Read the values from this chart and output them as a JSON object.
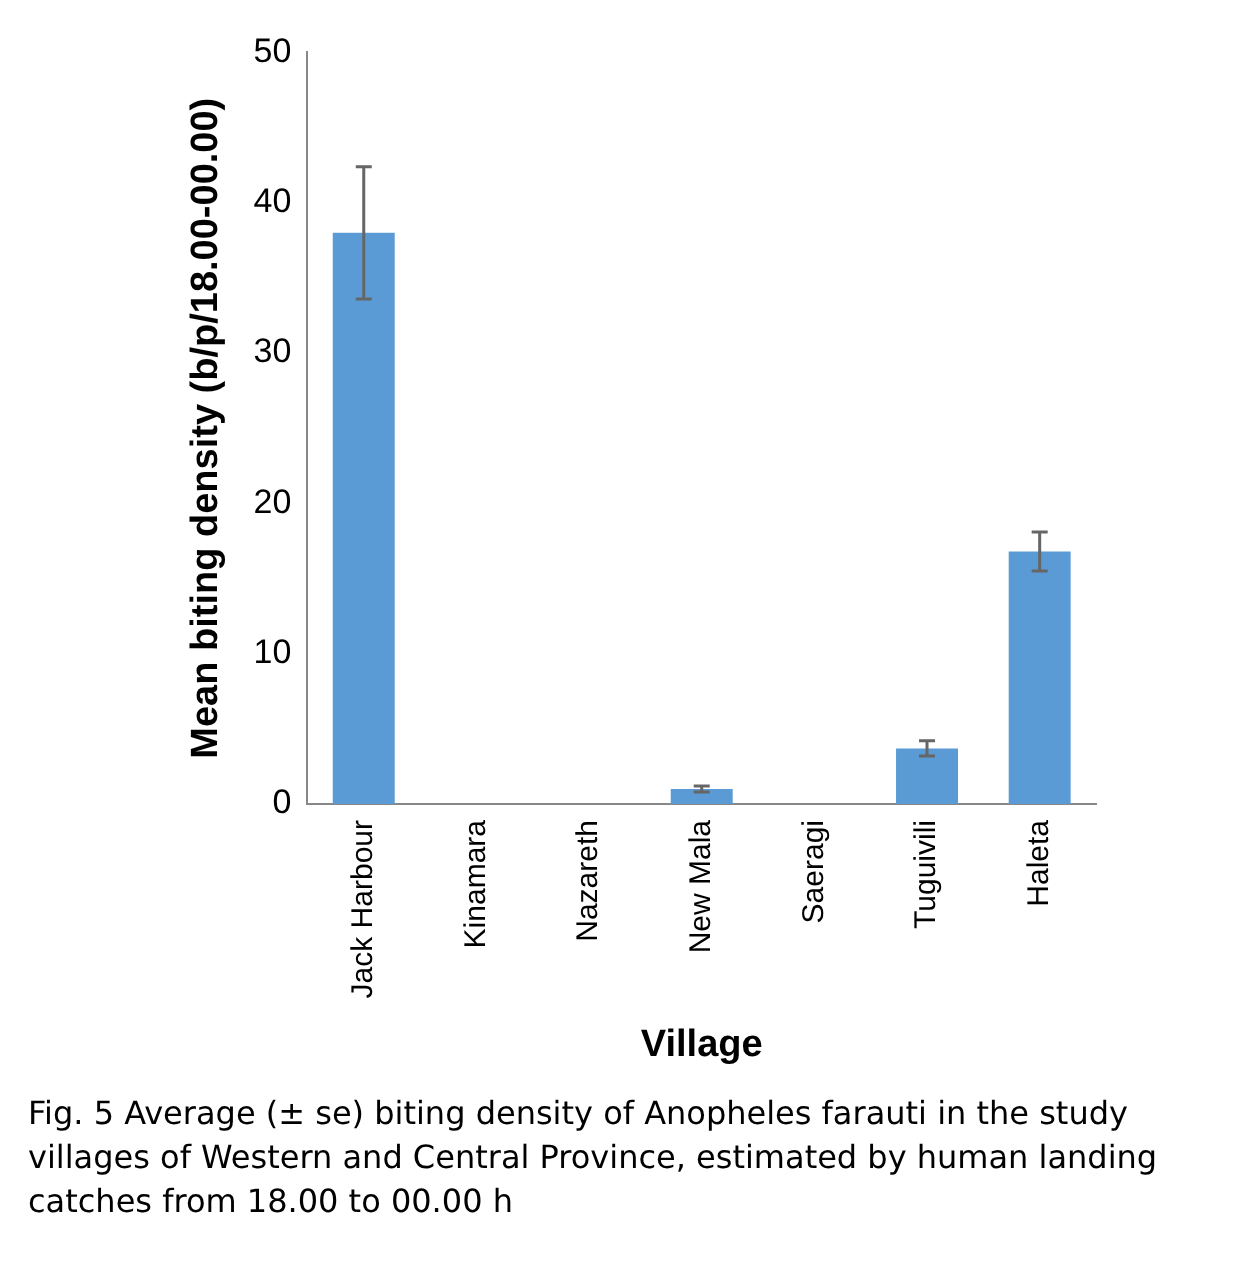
{
  "chart_data": {
    "type": "bar",
    "xlabel": "Village",
    "ylabel": "Mean biting density (b/p/18.00-00.00)",
    "categories": [
      "Jack Harbour",
      "Kinamara",
      "Nazareth",
      "New Mala",
      "Saeragi",
      "Tuguivili",
      "Haleta"
    ],
    "values": [
      38,
      0,
      0,
      1,
      0,
      3.7,
      16.8
    ],
    "errors": [
      4.4,
      null,
      null,
      0.2,
      null,
      0.5,
      1.3
    ],
    "color": "#5b9bd5",
    "ylim": [
      0,
      50
    ],
    "yticks": [
      0,
      10,
      20,
      30,
      40,
      50
    ],
    "grid": false,
    "legend": false,
    "annotations": [
      "Fig. 5 Average (± se) biting density of Anopheles farauti in the study villages of Western and Central Province, estimated by human landing catches from 18.00 to 00.00 h"
    ]
  }
}
